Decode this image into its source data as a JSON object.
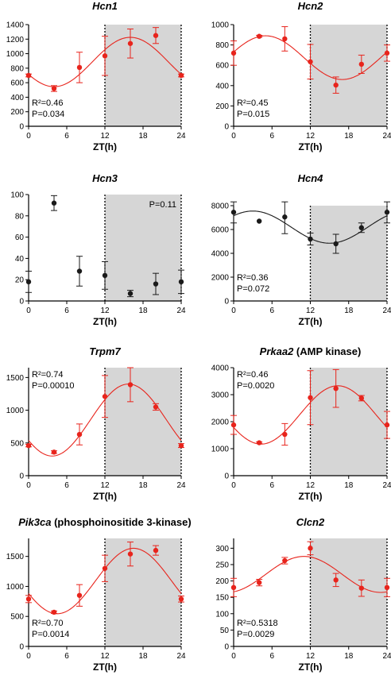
{
  "colors": {
    "red": "#e8241c",
    "black": "#1a1a1a",
    "shade": "#d6d6d6"
  },
  "chart_data": [
    {
      "type": "scatter",
      "title": "Hcn1",
      "title_suffix": "",
      "xlabel": "ZT(h)",
      "ylabel": "",
      "x": [
        0,
        4,
        8,
        12,
        16,
        20,
        24
      ],
      "y": [
        700,
        520,
        810,
        970,
        1140,
        1250,
        700
      ],
      "err": [
        20,
        40,
        210,
        270,
        200,
        110,
        20
      ],
      "xlim": [
        0,
        24
      ],
      "ylim": [
        0,
        1400
      ],
      "xticks": [
        0,
        6,
        12,
        18,
        24
      ],
      "yticks": [
        0,
        200,
        400,
        600,
        800,
        1000,
        1200,
        1400
      ],
      "fit": {
        "mesor": 885,
        "amplitude": 340,
        "peak": 16
      },
      "color": "red",
      "shade": [
        12,
        24
      ],
      "annotations": [
        "R²=0.46",
        "P=0.034"
      ],
      "annot_pos": "bottom-left"
    },
    {
      "type": "scatter",
      "title": "Hcn2",
      "title_suffix": "",
      "xlabel": "ZT(h)",
      "ylabel": "",
      "x": [
        0,
        4,
        8,
        12,
        16,
        20,
        24
      ],
      "y": [
        720,
        885,
        860,
        635,
        405,
        610,
        720
      ],
      "err": [
        120,
        10,
        120,
        170,
        80,
        90,
        80
      ],
      "xlim": [
        0,
        24
      ],
      "ylim": [
        0,
        1000
      ],
      "xticks": [
        0,
        6,
        12,
        18,
        24
      ],
      "yticks": [
        0,
        200,
        400,
        600,
        800,
        1000
      ],
      "fit": {
        "mesor": 675,
        "amplitude": 215,
        "peak": 5
      },
      "color": "red",
      "shade": [
        12,
        24
      ],
      "annotations": [
        "R²=0.45",
        "P=0.015"
      ],
      "annot_pos": "bottom-left"
    },
    {
      "type": "scatter",
      "title": "Hcn3",
      "title_suffix": "",
      "xlabel": "ZT(h)",
      "ylabel": "",
      "x": [
        0,
        4,
        8,
        12,
        16,
        20,
        24
      ],
      "y": [
        18,
        92,
        28,
        24,
        7,
        16,
        18
      ],
      "err": [
        10,
        7,
        14,
        13,
        3,
        10,
        11
      ],
      "xlim": [
        0,
        24
      ],
      "ylim": [
        0,
        100
      ],
      "xticks": [
        0,
        6,
        12,
        18,
        24
      ],
      "yticks": [
        0,
        20,
        40,
        60,
        80,
        100
      ],
      "fit": null,
      "color": "black",
      "shade": [
        12,
        24
      ],
      "annotations": [
        "P=0.11"
      ],
      "annot_pos": "top-right"
    },
    {
      "type": "scatter",
      "title": "Hcn4",
      "title_suffix": "",
      "xlabel": "ZT(h)",
      "ylabel": "",
      "x": [
        0,
        4,
        8,
        12,
        16,
        20,
        24
      ],
      "y": [
        7450,
        6700,
        7050,
        5200,
        4800,
        6150,
        7450
      ],
      "err": [
        900,
        0,
        1400,
        500,
        800,
        400,
        900
      ],
      "xlim": [
        0,
        24
      ],
      "ylim": [
        0,
        8000
      ],
      "xticks": [
        0,
        6,
        12,
        18,
        24
      ],
      "yticks": [
        0,
        2000,
        4000,
        6000,
        8000
      ],
      "fit": {
        "mesor": 6200,
        "amplitude": 1350,
        "peak": 3
      },
      "color": "black",
      "shade": [
        12,
        24
      ],
      "annotations": [
        "R²=0.36",
        "P=0.072"
      ],
      "annot_pos": "bottom-left"
    },
    {
      "type": "scatter",
      "title": "Trpm7",
      "title_suffix": "",
      "xlabel": "ZT(h)",
      "ylabel": "",
      "x": [
        0,
        4,
        8,
        12,
        16,
        20,
        24
      ],
      "y": [
        460,
        360,
        630,
        1210,
        1390,
        1050,
        460
      ],
      "err": [
        20,
        20,
        160,
        320,
        260,
        50,
        30
      ],
      "xlim": [
        0,
        24
      ],
      "ylim": [
        0,
        1650
      ],
      "xticks": [
        0,
        6,
        12,
        18,
        24
      ],
      "yticks": [
        0,
        500,
        1000,
        1500
      ],
      "fit": {
        "mesor": 850,
        "amplitude": 550,
        "peak": 15.7
      },
      "color": "red",
      "shade": [
        12,
        24
      ],
      "annotations": [
        "R²=0.74",
        "P=0.00010"
      ],
      "annot_pos": "top-left"
    },
    {
      "type": "scatter",
      "title": "Prkaa2",
      "title_suffix": " (AMP kinase)",
      "xlabel": "ZT(h)",
      "ylabel": "",
      "x": [
        0,
        4,
        8,
        12,
        16,
        20,
        24
      ],
      "y": [
        1880,
        1220,
        1530,
        2890,
        3230,
        2870,
        1880
      ],
      "err": [
        350,
        30,
        400,
        1000,
        700,
        100,
        500
      ],
      "xlim": [
        0,
        24
      ],
      "ylim": [
        0,
        4000
      ],
      "xticks": [
        0,
        6,
        12,
        18,
        24
      ],
      "yticks": [
        0,
        1000,
        2000,
        3000,
        4000
      ],
      "fit": {
        "mesor": 2250,
        "amplitude": 1080,
        "peak": 16.3
      },
      "color": "red",
      "shade": [
        12,
        24
      ],
      "annotations": [
        "R²=0.46",
        "P=0.0020"
      ],
      "annot_pos": "top-left"
    },
    {
      "type": "scatter",
      "title": "Pik3ca",
      "title_suffix": " (phosphoinositide 3-kinase)",
      "xlabel": "ZT(h)",
      "ylabel": "",
      "x": [
        0,
        4,
        8,
        12,
        16,
        20,
        24
      ],
      "y": [
        790,
        570,
        850,
        1300,
        1540,
        1600,
        790
      ],
      "err": [
        60,
        20,
        180,
        220,
        200,
        80,
        50
      ],
      "xlim": [
        0,
        24
      ],
      "ylim": [
        0,
        1800
      ],
      "xticks": [
        0,
        6,
        12,
        18,
        24
      ],
      "yticks": [
        0,
        500,
        1000,
        1500
      ],
      "fit": {
        "mesor": 1090,
        "amplitude": 545,
        "peak": 16.5
      },
      "color": "red",
      "shade": [
        12,
        24
      ],
      "annotations": [
        "R²=0.70",
        "P=0.0014"
      ],
      "annot_pos": "bottom-left"
    },
    {
      "type": "scatter",
      "title": "Clcn2",
      "title_suffix": "",
      "xlabel": "ZT(h)",
      "ylabel": "",
      "x": [
        0,
        4,
        8,
        12,
        16,
        20,
        24
      ],
      "y": [
        180,
        195,
        262,
        300,
        203,
        178,
        180
      ],
      "err": [
        28,
        10,
        10,
        20,
        20,
        25,
        28
      ],
      "xlim": [
        0,
        24
      ],
      "ylim": [
        0,
        330
      ],
      "xticks": [
        0,
        6,
        12,
        18,
        24
      ],
      "yticks": [
        0,
        50,
        100,
        150,
        200,
        250,
        300
      ],
      "fit": {
        "mesor": 220,
        "amplitude": 55,
        "peak": 11
      },
      "color": "red",
      "shade": [
        12,
        24
      ],
      "annotations": [
        "R²=0.5318",
        "P=0.0029"
      ],
      "annot_pos": "bottom-left"
    }
  ]
}
